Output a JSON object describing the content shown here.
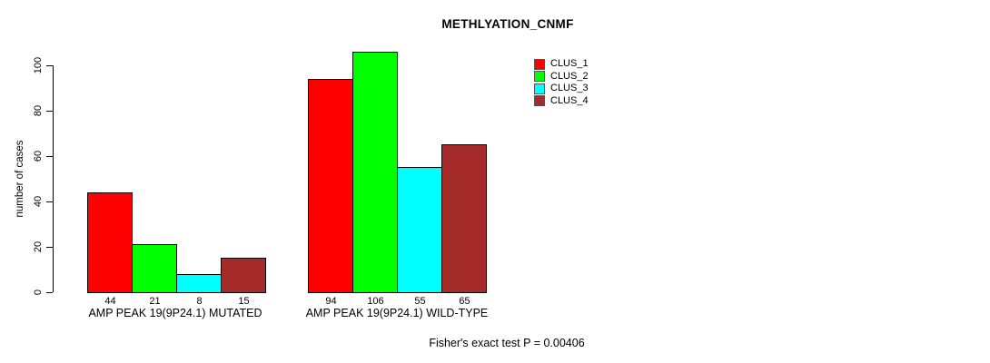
{
  "title": "METHLYATION_CNMF",
  "chart_data": {
    "type": "bar",
    "title": "METHLYATION_CNMF",
    "ylabel": "number of cases",
    "xlabel": "",
    "ylim": [
      0,
      100
    ],
    "yticks": [
      0,
      20,
      40,
      60,
      80,
      100
    ],
    "grid": false,
    "legend_position": "top-right",
    "groups": [
      {
        "label": "AMP PEAK 19(9P24.1) MUTATED",
        "values": [
          44,
          21,
          8,
          15
        ]
      },
      {
        "label": "AMP PEAK 19(9P24.1) WILD-TYPE",
        "values": [
          94,
          106,
          55,
          65
        ]
      }
    ],
    "series": [
      {
        "name": "CLUS_1",
        "color": "#ff0000"
      },
      {
        "name": "CLUS_2",
        "color": "#00ff00"
      },
      {
        "name": "CLUS_3",
        "color": "#00ffff"
      },
      {
        "name": "CLUS_4",
        "color": "#a52a2a"
      }
    ],
    "annotation": "Fisher's exact test P = 0.00406"
  }
}
